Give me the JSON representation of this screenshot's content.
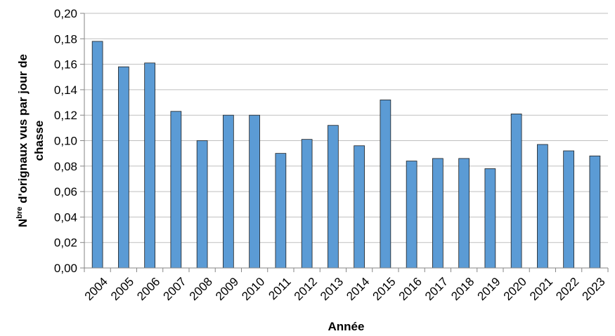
{
  "chart_data": {
    "type": "bar",
    "categories": [
      "2004",
      "2005",
      "2006",
      "2007",
      "2008",
      "2009",
      "2010",
      "2011",
      "2012",
      "2013",
      "2014",
      "2015",
      "2016",
      "2017",
      "2018",
      "2019",
      "2020",
      "2021",
      "2022",
      "2023"
    ],
    "values": [
      0.178,
      0.158,
      0.161,
      0.123,
      0.1,
      0.12,
      0.12,
      0.09,
      0.101,
      0.112,
      0.096,
      0.132,
      0.084,
      0.086,
      0.086,
      0.078,
      0.121,
      0.097,
      0.092,
      0.088
    ],
    "y_ticks": [
      "0,00",
      "0,02",
      "0,04",
      "0,06",
      "0,08",
      "0,10",
      "0,12",
      "0,14",
      "0,16",
      "0,18",
      "0,20"
    ],
    "ylim": [
      0,
      0.2
    ],
    "title": "",
    "xlabel": "Année",
    "ylabel_line1_prefix": "N",
    "ylabel_line1_superscript": "bre",
    "ylabel_line1_rest": " d'orignaux vus par jour de",
    "ylabel_line2": "chasse",
    "grid": true,
    "legend": "none",
    "colors": {
      "bar_fill": "#5b9bd5",
      "bar_stroke": "#1f1f1f",
      "grid": "#bfbfbf",
      "axis": "#868686"
    }
  }
}
